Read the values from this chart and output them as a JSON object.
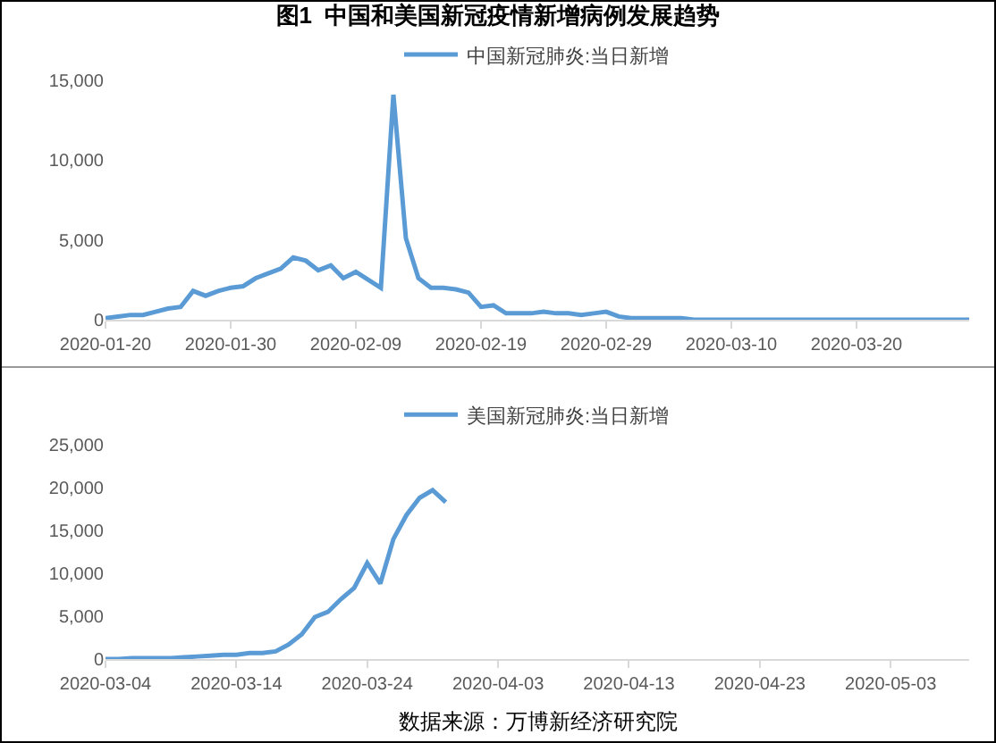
{
  "chart_data": [
    {
      "type": "line",
      "title": "图1  中国和美国新冠疫情新增病例发展趋势",
      "x": [
        "2020-01-20",
        "2020-01-21",
        "2020-01-22",
        "2020-01-23",
        "2020-01-24",
        "2020-01-25",
        "2020-01-26",
        "2020-01-27",
        "2020-01-28",
        "2020-01-29",
        "2020-01-30",
        "2020-01-31",
        "2020-02-01",
        "2020-02-02",
        "2020-02-03",
        "2020-02-04",
        "2020-02-05",
        "2020-02-06",
        "2020-02-07",
        "2020-02-08",
        "2020-02-09",
        "2020-02-10",
        "2020-02-11",
        "2020-02-12",
        "2020-02-13",
        "2020-02-14",
        "2020-02-15",
        "2020-02-16",
        "2020-02-17",
        "2020-02-18",
        "2020-02-19",
        "2020-02-20",
        "2020-02-21",
        "2020-02-22",
        "2020-02-23",
        "2020-02-24",
        "2020-02-25",
        "2020-02-26",
        "2020-02-27",
        "2020-02-28",
        "2020-02-29",
        "2020-03-01",
        "2020-03-02",
        "2020-03-03",
        "2020-03-04",
        "2020-03-05",
        "2020-03-06",
        "2020-03-07",
        "2020-03-08",
        "2020-03-09",
        "2020-03-10",
        "2020-03-11",
        "2020-03-12",
        "2020-03-13",
        "2020-03-14",
        "2020-03-15",
        "2020-03-16",
        "2020-03-17",
        "2020-03-18",
        "2020-03-19",
        "2020-03-20",
        "2020-03-21",
        "2020-03-22",
        "2020-03-23",
        "2020-03-24",
        "2020-03-25",
        "2020-03-26",
        "2020-03-27",
        "2020-03-28",
        "2020-03-29"
      ],
      "series": [
        {
          "name": "中国新冠肺炎:当日新增",
          "color": "#5b9bd5",
          "values": [
            100,
            200,
            300,
            300,
            500,
            700,
            800,
            1800,
            1500,
            1800,
            2000,
            2100,
            2600,
            2900,
            3200,
            3900,
            3700,
            3100,
            3400,
            2600,
            3000,
            2500,
            2000,
            14100,
            5100,
            2600,
            2000,
            2000,
            1900,
            1700,
            800,
            900,
            400,
            400,
            400,
            500,
            400,
            400,
            300,
            400,
            500,
            200,
            100,
            100,
            100,
            100,
            100,
            0,
            0,
            0,
            0,
            0,
            0,
            0,
            0,
            0,
            0,
            0,
            0,
            0,
            0,
            0,
            0,
            0,
            0,
            0,
            0,
            0,
            0,
            0
          ]
        }
      ],
      "xlim": [
        "2020-01-20",
        "2020-03-29"
      ],
      "xticks": [
        "2020-01-20",
        "2020-01-30",
        "2020-02-09",
        "2020-02-19",
        "2020-02-29",
        "2020-03-10",
        "2020-03-20"
      ],
      "ylim": [
        0,
        15000
      ],
      "yticks": [
        {
          "value": 0,
          "label": "0"
        },
        {
          "value": 5000,
          "label": "5,000"
        },
        {
          "value": 10000,
          "label": "10,000"
        },
        {
          "value": 15000,
          "label": "15,000"
        }
      ],
      "grid": false,
      "legend": "top",
      "marker": "none",
      "line_style": "solid"
    },
    {
      "type": "line",
      "x": [
        "2020-03-04",
        "2020-03-05",
        "2020-03-06",
        "2020-03-07",
        "2020-03-08",
        "2020-03-09",
        "2020-03-10",
        "2020-03-11",
        "2020-03-12",
        "2020-03-13",
        "2020-03-14",
        "2020-03-15",
        "2020-03-16",
        "2020-03-17",
        "2020-03-18",
        "2020-03-19",
        "2020-03-20",
        "2020-03-21",
        "2020-03-22",
        "2020-03-23",
        "2020-03-24",
        "2020-03-25",
        "2020-03-26",
        "2020-03-27",
        "2020-03-28",
        "2020-03-29",
        "2020-03-30"
      ],
      "series": [
        {
          "name": "美国新冠肺炎:当日新增",
          "color": "#5b9bd5",
          "values": [
            0,
            0,
            100,
            100,
            100,
            100,
            200,
            300,
            400,
            500,
            500,
            700,
            700,
            900,
            1700,
            2900,
            4900,
            5500,
            7000,
            8300,
            11200,
            8800,
            14000,
            16800,
            18800,
            19700,
            18300
          ]
        }
      ],
      "xlim": [
        "2020-03-04",
        "2020-05-09"
      ],
      "xticks": [
        "2020-03-04",
        "2020-03-14",
        "2020-03-24",
        "2020-04-03",
        "2020-04-13",
        "2020-04-23",
        "2020-05-03"
      ],
      "ylim": [
        0,
        25000
      ],
      "yticks": [
        {
          "value": 0,
          "label": "0"
        },
        {
          "value": 5000,
          "label": "5,000"
        },
        {
          "value": 10000,
          "label": "10,000"
        },
        {
          "value": 15000,
          "label": "15,000"
        },
        {
          "value": 20000,
          "label": "20,000"
        },
        {
          "value": 25000,
          "label": "25,000"
        }
      ],
      "grid": false,
      "legend": "top",
      "marker": "none",
      "line_style": "solid",
      "annotations": [
        "数据来源：万博新经济研究院"
      ]
    }
  ]
}
